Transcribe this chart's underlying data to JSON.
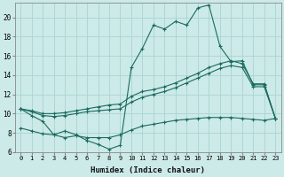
{
  "xlabel": "Humidex (Indice chaleur)",
  "bg_color": "#cceae8",
  "grid_color": "#aad4d0",
  "line_color": "#1a6b5e",
  "xlim": [
    -0.5,
    23.5
  ],
  "ylim": [
    6,
    21.5
  ],
  "yticks": [
    6,
    8,
    10,
    12,
    14,
    16,
    18,
    20
  ],
  "xticks": [
    0,
    1,
    2,
    3,
    4,
    5,
    6,
    7,
    8,
    9,
    10,
    11,
    12,
    13,
    14,
    15,
    16,
    17,
    18,
    19,
    20,
    21,
    22,
    23
  ],
  "series1_y": [
    10.5,
    9.8,
    9.2,
    7.8,
    8.2,
    7.8,
    7.2,
    6.8,
    6.3,
    6.7,
    14.8,
    16.8,
    19.2,
    18.8,
    19.6,
    19.2,
    21.0,
    21.3,
    17.0,
    15.4,
    15.5,
    13.0,
    13.0,
    9.5
  ],
  "series2_y": [
    10.5,
    10.3,
    10.0,
    10.0,
    10.1,
    10.3,
    10.5,
    10.7,
    10.9,
    11.0,
    11.8,
    12.3,
    12.5,
    12.8,
    13.2,
    13.7,
    14.2,
    14.8,
    15.2,
    15.5,
    15.2,
    13.1,
    13.1,
    9.5
  ],
  "series3_y": [
    10.5,
    10.2,
    9.8,
    9.7,
    9.8,
    10.0,
    10.2,
    10.3,
    10.4,
    10.5,
    11.2,
    11.7,
    12.0,
    12.3,
    12.7,
    13.2,
    13.7,
    14.2,
    14.7,
    15.0,
    14.8,
    12.8,
    12.8,
    9.5
  ],
  "series4_y": [
    8.5,
    8.2,
    7.9,
    7.8,
    7.5,
    7.7,
    7.5,
    7.5,
    7.5,
    7.8,
    8.3,
    8.7,
    8.9,
    9.1,
    9.3,
    9.4,
    9.5,
    9.6,
    9.6,
    9.6,
    9.5,
    9.4,
    9.3,
    9.5
  ]
}
